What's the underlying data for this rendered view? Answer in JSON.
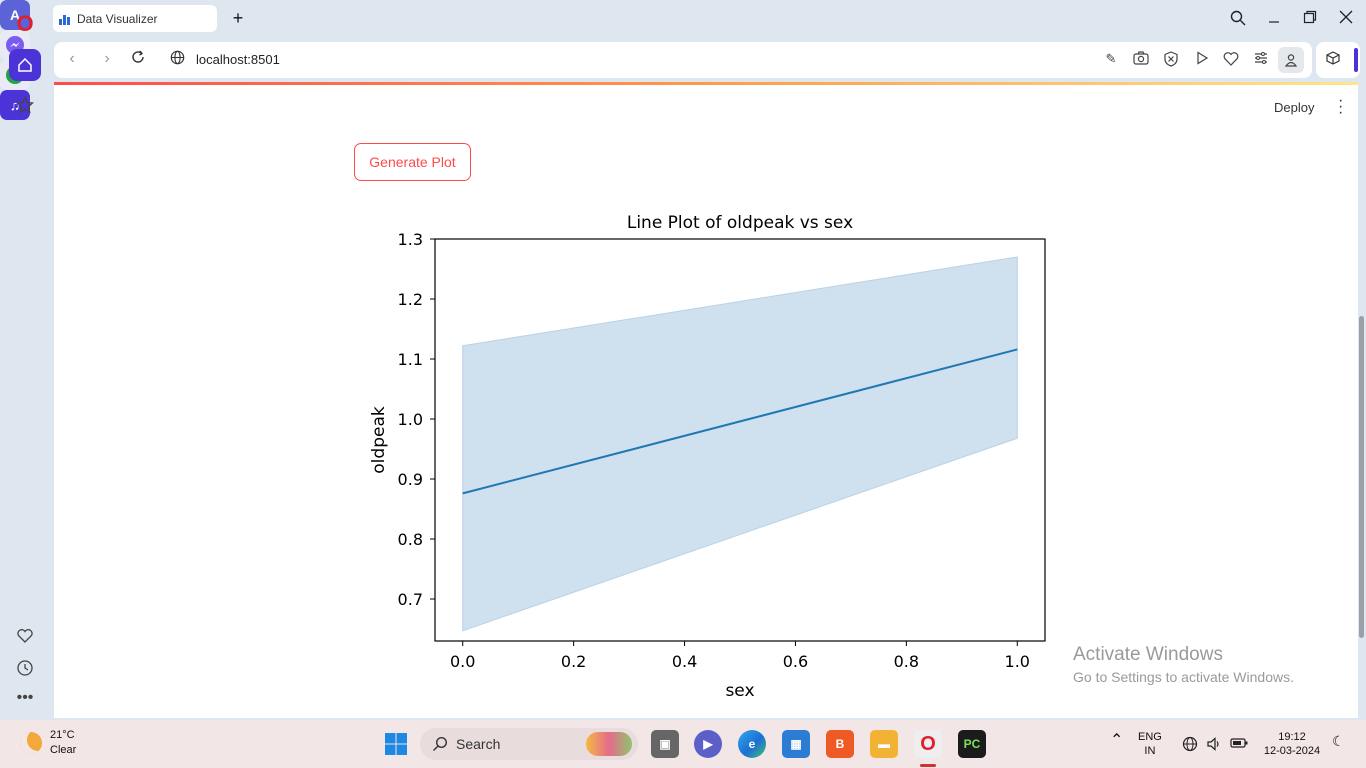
{
  "browser": {
    "tab_title": "Data Visualizer",
    "url": "localhost:8501",
    "new_tab_symbol": "+"
  },
  "app": {
    "deploy_label": "Deploy",
    "generate_button": "Generate Plot"
  },
  "chart_data": {
    "type": "line",
    "title": "Line Plot of oldpeak vs sex",
    "xlabel": "sex",
    "ylabel": "oldpeak",
    "x": [
      0.0,
      1.0
    ],
    "series": [
      {
        "values": [
          0.876,
          1.116
        ],
        "ci_lower": [
          0.647,
          0.968
        ],
        "ci_upper": [
          1.122,
          1.27
        ]
      }
    ],
    "xlim": [
      -0.05,
      1.05
    ],
    "ylim": [
      0.63,
      1.3
    ],
    "xticks": [
      "0.0",
      "0.2",
      "0.4",
      "0.6",
      "0.8",
      "1.0"
    ],
    "yticks": [
      "0.7",
      "0.8",
      "0.9",
      "1.0",
      "1.1",
      "1.2",
      "1.3"
    ],
    "line_color": "#1f77b4",
    "band_color": "#cfe0ee",
    "grid": false
  },
  "watermark": {
    "line1": "Activate Windows",
    "line2": "Go to Settings to activate Windows."
  },
  "taskbar": {
    "temperature": "21°C",
    "condition": "Clear",
    "search_label": "Search",
    "language": "ENG",
    "region": "IN",
    "time": "19:12",
    "date": "12-03-2024"
  }
}
